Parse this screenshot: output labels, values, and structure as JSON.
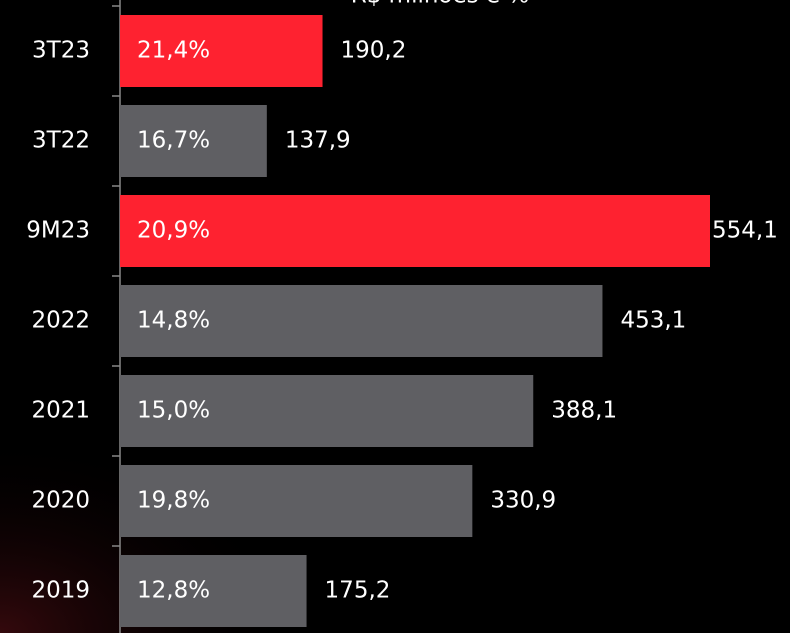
{
  "chart_data": {
    "type": "bar",
    "orientation": "horizontal",
    "title": "R$ milhões e %",
    "categories": [
      "3T23",
      "3T22",
      "9M23",
      "2022",
      "2021",
      "2020",
      "2019"
    ],
    "values": [
      190.2,
      137.9,
      554.1,
      453.1,
      388.1,
      330.9,
      175.2
    ],
    "value_labels": [
      "190,2",
      "137,9",
      "554,1",
      "453,1",
      "388,1",
      "330,9",
      "175,2"
    ],
    "margins": [
      21.4,
      16.7,
      20.9,
      14.8,
      15.0,
      19.8,
      12.8
    ],
    "margin_labels": [
      "21,4%",
      "16,7%",
      "20,9%",
      "14,8%",
      "15,0%",
      "19,8%",
      "12,8%"
    ],
    "colors": [
      "#fe2230",
      "#5f5f63",
      "#fe2230",
      "#5f5f63",
      "#5f5f63",
      "#5f5f63",
      "#5f5f63"
    ]
  }
}
